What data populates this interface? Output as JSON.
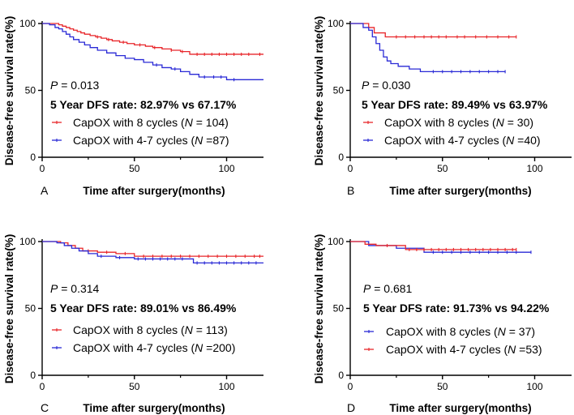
{
  "chart_data": [
    {
      "type": "line",
      "panel_label": "A",
      "xlabel": "Time after surgery(months)",
      "ylabel": "Disease-free survival rate(%)",
      "xlim": [
        0,
        120
      ],
      "ylim": [
        0,
        100
      ],
      "xticks": [
        0,
        50,
        100
      ],
      "yticks": [
        0,
        50,
        100
      ],
      "xtick_labels": [
        "0",
        "50",
        "100"
      ],
      "ytick_labels": [
        "0",
        "50",
        "100"
      ],
      "p_value": {
        "prefix": "P",
        "text": " = 0.013"
      },
      "dfs_text": "5 Year DFS rate: 82.97% vs 67.17%",
      "legend": [
        {
          "text": "CapOX with 8 cycles (",
          "n_text": " = 104)",
          "color": "#e8262a"
        },
        {
          "text": "CapOX with 4-7 cycles (",
          "n_text": " =87)",
          "color": "#2a2ad6"
        }
      ],
      "series": [
        {
          "name": "CapOX with 8 cycles (N = 104)",
          "color": "#e8262a",
          "x": [
            0,
            5,
            9,
            11,
            13,
            15,
            17,
            19,
            21,
            23,
            26,
            29,
            32,
            35,
            38,
            42,
            46,
            50,
            56,
            60,
            65,
            70,
            75,
            80,
            120
          ],
          "y": [
            100,
            100,
            99,
            98,
            97,
            96,
            95,
            94,
            93,
            92,
            91,
            90,
            89,
            88,
            87,
            86,
            85,
            84,
            83,
            82,
            81,
            80,
            79,
            77,
            77
          ],
          "censors": [
            30,
            36,
            44,
            53,
            61,
            70,
            76,
            84,
            88,
            92,
            96,
            100,
            104,
            108,
            112,
            118
          ]
        },
        {
          "name": "CapOX with 4-7 cycles (N =87)",
          "color": "#2a2ad6",
          "x": [
            0,
            4,
            7,
            9,
            11,
            13,
            15,
            17,
            20,
            23,
            26,
            30,
            35,
            40,
            45,
            50,
            55,
            60,
            65,
            70,
            75,
            80,
            85,
            100,
            120
          ],
          "y": [
            100,
            99,
            97,
            96,
            94,
            92,
            90,
            88,
            86,
            84,
            82,
            80,
            78,
            76,
            74,
            73,
            71,
            69,
            67,
            66,
            64,
            62,
            60,
            58,
            58
          ],
          "censors": [
            62,
            72,
            88,
            93,
            97,
            104
          ]
        }
      ]
    },
    {
      "type": "line",
      "panel_label": "B",
      "xlabel": "Time after surgery(months)",
      "ylabel": "Disease-free survival rate(%)",
      "xlim": [
        0,
        120
      ],
      "ylim": [
        0,
        100
      ],
      "xticks": [
        0,
        50,
        100
      ],
      "yticks": [
        0,
        50,
        100
      ],
      "xtick_labels": [
        "0",
        "50",
        "100"
      ],
      "ytick_labels": [
        "0",
        "50",
        "100"
      ],
      "p_value": {
        "prefix": "P",
        "text": " = 0.030"
      },
      "dfs_text": "5 Year DFS rate: 89.49% vs 63.97%",
      "legend": [
        {
          "text": "CapOX with 8 cycles (",
          "n_text": " = 30)",
          "color": "#e8262a"
        },
        {
          "text": "CapOX with 4-7 cycles (",
          "n_text": " =40)",
          "color": "#2a2ad6"
        }
      ],
      "series": [
        {
          "name": "CapOX with 8 cycles (N = 30)",
          "color": "#e8262a",
          "x": [
            0,
            10,
            13,
            19,
            90
          ],
          "y": [
            100,
            97,
            93,
            90,
            90
          ],
          "censors": [
            25,
            30,
            35,
            40,
            44,
            48,
            52,
            58,
            62,
            68,
            74,
            80,
            86,
            90
          ]
        },
        {
          "name": "CapOX with 4-7 cycles (N =40)",
          "color": "#2a2ad6",
          "x": [
            0,
            7,
            10,
            12,
            14,
            16,
            18,
            20,
            22,
            26,
            32,
            38,
            84
          ],
          "y": [
            100,
            97,
            95,
            90,
            85,
            80,
            75,
            72,
            70,
            68,
            66,
            64,
            64
          ],
          "censors": [
            45,
            50,
            55,
            60,
            65,
            70,
            75,
            80,
            84
          ]
        }
      ]
    },
    {
      "type": "line",
      "panel_label": "C",
      "xlabel": "Time after surgery(months)",
      "ylabel": "Disease-free survival rate(%)",
      "xlim": [
        0,
        120
      ],
      "ylim": [
        0,
        100
      ],
      "xticks": [
        0,
        50,
        100
      ],
      "yticks": [
        0,
        50,
        100
      ],
      "xtick_labels": [
        "0",
        "50",
        "100"
      ],
      "ytick_labels": [
        "0",
        "50",
        "100"
      ],
      "p_value": {
        "prefix": "P",
        "text": " = 0.314"
      },
      "dfs_text": "5 Year DFS rate: 89.01% vs 86.49%",
      "legend": [
        {
          "text": "CapOX with 8 cycles (",
          "n_text": " = 113)",
          "color": "#e8262a"
        },
        {
          "text": "CapOX with 4-7 cycles (",
          "n_text": " =200)",
          "color": "#2a2ad6"
        }
      ],
      "series": [
        {
          "name": "CapOX with 8 cycles (N = 113)",
          "color": "#e8262a",
          "x": [
            0,
            10,
            14,
            18,
            22,
            30,
            40,
            50,
            120
          ],
          "y": [
            100,
            99,
            97,
            95,
            93,
            92,
            91,
            89,
            89
          ],
          "censors": [
            25,
            35,
            45,
            55,
            60,
            65,
            70,
            75,
            80,
            85,
            90,
            95,
            100,
            105,
            110,
            115,
            118
          ]
        },
        {
          "name": "CapOX with 4-7 cycles (N =200)",
          "color": "#2a2ad6",
          "x": [
            0,
            8,
            12,
            16,
            20,
            25,
            30,
            40,
            50,
            82,
            120
          ],
          "y": [
            100,
            99,
            97,
            95,
            93,
            91,
            89,
            88,
            87,
            84,
            84
          ],
          "censors": [
            32,
            42,
            52,
            56,
            60,
            64,
            68,
            72,
            76,
            84,
            88,
            92,
            96,
            100,
            104,
            108,
            112,
            116
          ]
        }
      ]
    },
    {
      "type": "line",
      "panel_label": "D",
      "xlabel": "Time after surgery(months)",
      "ylabel": "Disease-free survival rate(%)",
      "xlim": [
        0,
        120
      ],
      "ylim": [
        0,
        100
      ],
      "xticks": [
        0,
        50,
        100
      ],
      "yticks": [
        0,
        50,
        100
      ],
      "xtick_labels": [
        "0",
        "50",
        "100"
      ],
      "ytick_labels": [
        "0",
        "50",
        "100"
      ],
      "p_value": {
        "prefix": "P",
        "text": " = 0.681"
      },
      "dfs_text": "5 Year DFS rate: 91.73% vs 94.22%",
      "legend": [
        {
          "text": "CapOX with 8 cycles (",
          "n_text": " = 37)",
          "color": "#2a2ad6"
        },
        {
          "text": "CapOX with 4-7 cycles (",
          "n_text": " =53)",
          "color": "#e8262a"
        }
      ],
      "series": [
        {
          "name": "CapOX with 8 cycles (N = 37)",
          "color": "#2a2ad6",
          "x": [
            0,
            10,
            25,
            40,
            98
          ],
          "y": [
            100,
            97,
            95,
            92,
            92
          ],
          "censors": [
            45,
            50,
            55,
            60,
            65,
            70,
            75,
            80,
            85,
            90,
            98
          ]
        },
        {
          "name": "CapOX with 4-7 cycles (N =53)",
          "color": "#e8262a",
          "x": [
            0,
            8,
            14,
            30,
            90
          ],
          "y": [
            100,
            98,
            97,
            94,
            94
          ],
          "censors": [
            20,
            32,
            36,
            40,
            44,
            48,
            52,
            56,
            60,
            64,
            68,
            72,
            76,
            80,
            84,
            88,
            90
          ]
        }
      ]
    }
  ]
}
